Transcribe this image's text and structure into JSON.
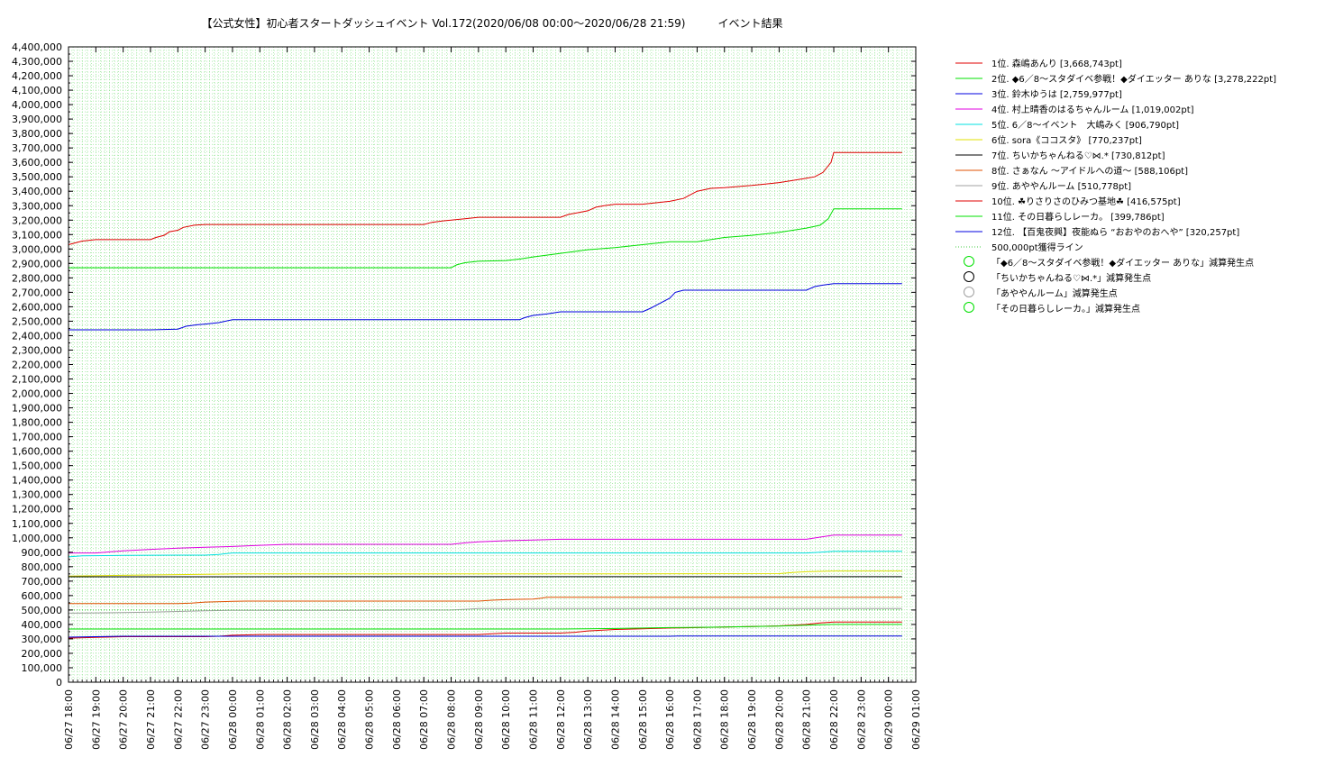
{
  "chart_data": {
    "type": "line",
    "title": "【公式女性】初心者スタートダッシュイベント Vol.172(2020/06/08 00:00〜2020/06/28 21:59)　　　イベント結果",
    "xlabel": "",
    "ylabel": "",
    "grid": true,
    "legend_position": "right",
    "ylim": [
      0,
      4400000
    ],
    "xlim": [
      "06/27 18:00",
      "06/29 01:00"
    ],
    "y_ticks": [
      "0",
      "100,000",
      "200,000",
      "300,000",
      "400,000",
      "500,000",
      "600,000",
      "700,000",
      "800,000",
      "900,000",
      "1,000,000",
      "1,100,000",
      "1,200,000",
      "1,300,000",
      "1,400,000",
      "1,500,000",
      "1,600,000",
      "1,700,000",
      "1,800,000",
      "1,900,000",
      "2,000,000",
      "2,100,000",
      "2,200,000",
      "2,300,000",
      "2,400,000",
      "2,500,000",
      "2,600,000",
      "2,700,000",
      "2,800,000",
      "2,900,000",
      "3,000,000",
      "3,100,000",
      "3,200,000",
      "3,300,000",
      "3,400,000",
      "3,500,000",
      "3,600,000",
      "3,700,000",
      "3,800,000",
      "3,900,000",
      "4,000,000",
      "4,100,000",
      "4,200,000",
      "4,300,000",
      "4,400,000"
    ],
    "x_ticks": [
      "06/27 18:00",
      "06/27 19:00",
      "06/27 20:00",
      "06/27 21:00",
      "06/27 22:00",
      "06/27 23:00",
      "06/28 00:00",
      "06/28 01:00",
      "06/28 02:00",
      "06/28 03:00",
      "06/28 04:00",
      "06/28 05:00",
      "06/28 06:00",
      "06/28 07:00",
      "06/28 08:00",
      "06/28 09:00",
      "06/28 10:00",
      "06/28 11:00",
      "06/28 12:00",
      "06/28 13:00",
      "06/28 14:00",
      "06/28 15:00",
      "06/28 16:00",
      "06/28 17:00",
      "06/28 18:00",
      "06/28 19:00",
      "06/28 20:00",
      "06/28 21:00",
      "06/28 22:00",
      "06/28 23:00",
      "06/29 00:00",
      "06/29 01:00"
    ],
    "series": [
      {
        "name": "1位. 森嶋あんり [3,668,743pt]",
        "color": "#e00000",
        "style": "solid",
        "x": [
          0,
          0.2,
          0.5,
          1,
          2,
          3,
          3.2,
          3.5,
          3.7,
          4,
          4.2,
          4.6,
          5,
          5.5,
          13,
          13.3,
          13.7,
          14,
          14.5,
          15,
          17,
          18,
          18.3,
          18.6,
          19,
          19.3,
          19.6,
          20,
          21,
          21.5,
          22,
          22.5,
          23,
          23.5,
          24,
          25,
          25.5,
          26,
          26.5,
          27,
          27.3,
          27.6,
          27.9,
          28,
          29,
          30,
          30.5
        ],
        "y": [
          3030000,
          3040000,
          3055000,
          3065000,
          3065000,
          3065000,
          3080000,
          3095000,
          3120000,
          3130000,
          3150000,
          3165000,
          3170000,
          3170000,
          3170000,
          3185000,
          3195000,
          3200000,
          3210000,
          3220000,
          3220000,
          3220000,
          3240000,
          3250000,
          3265000,
          3290000,
          3300000,
          3310000,
          3310000,
          3320000,
          3330000,
          3350000,
          3400000,
          3420000,
          3425000,
          3440000,
          3450000,
          3460000,
          3475000,
          3490000,
          3500000,
          3530000,
          3600000,
          3668743,
          3668743,
          3668743,
          3668743
        ]
      },
      {
        "name": "2位. ◆6／8〜スタダイベ参戦！◆ダイエッター ありな [3,278,222pt]",
        "color": "#00e000",
        "style": "solid",
        "x": [
          0,
          5,
          10,
          14,
          14.2,
          14.5,
          15,
          16,
          16.5,
          17,
          18,
          19,
          20,
          21,
          22,
          23,
          23.5,
          24,
          25,
          26,
          27,
          27.5,
          27.8,
          28,
          29,
          30,
          30.5
        ],
        "y": [
          2870000,
          2870000,
          2870000,
          2870000,
          2890000,
          2905000,
          2915000,
          2920000,
          2930000,
          2945000,
          2970000,
          2995000,
          3010000,
          3030000,
          3050000,
          3050000,
          3065000,
          3080000,
          3095000,
          3115000,
          3145000,
          3165000,
          3210000,
          3278222,
          3278222,
          3278222,
          3278222
        ]
      },
      {
        "name": "3位. 鈴木ゆうは [2,759,977pt]",
        "color": "#0000e0",
        "style": "solid",
        "x": [
          0,
          1,
          2,
          3,
          4,
          4.3,
          4.7,
          5,
          5.5,
          6,
          10,
          16.5,
          16.7,
          17,
          17.5,
          18,
          20,
          21,
          21.3,
          21.6,
          22,
          22.2,
          22.5,
          23,
          27,
          27.3,
          27.6,
          28,
          29,
          30,
          30.5
        ],
        "y": [
          2440000,
          2440000,
          2440000,
          2440000,
          2445000,
          2465000,
          2475000,
          2480000,
          2490000,
          2510000,
          2510000,
          2510000,
          2525000,
          2540000,
          2550000,
          2565000,
          2565000,
          2565000,
          2590000,
          2620000,
          2660000,
          2700000,
          2715000,
          2715000,
          2715000,
          2740000,
          2750000,
          2759977,
          2759977,
          2759977,
          2759977
        ]
      },
      {
        "name": "4位. 村上晴香のはるちゃんルーム [1,019,002pt]",
        "color": "#e000e0",
        "style": "solid",
        "x": [
          0,
          1,
          2,
          3,
          4,
          5,
          6,
          7,
          8,
          10,
          14,
          14.5,
          15,
          16,
          17,
          18,
          20,
          26,
          27,
          27.5,
          28,
          29,
          30,
          30.5
        ],
        "y": [
          895000,
          895000,
          910000,
          920000,
          928000,
          935000,
          940000,
          948000,
          955000,
          955000,
          955000,
          965000,
          972000,
          980000,
          985000,
          990000,
          990000,
          990000,
          990000,
          1005000,
          1019002,
          1019002,
          1019002,
          1019002
        ]
      },
      {
        "name": "5位. 6／8〜イベント　大嶋みく [906,790pt]",
        "color": "#00e0e0",
        "style": "solid",
        "x": [
          0,
          0.5,
          2,
          4,
          5,
          5.5,
          6,
          7,
          10,
          20,
          27,
          27.5,
          28,
          30.5
        ],
        "y": [
          868000,
          875000,
          878000,
          880000,
          880000,
          885000,
          895000,
          895000,
          895000,
          895000,
          895000,
          900000,
          906790,
          906790
        ]
      },
      {
        "name": "6位. sora《ココスタ》 [770,237pt]",
        "color": "#e0e000",
        "style": "solid",
        "x": [
          0,
          2,
          4,
          6,
          10,
          20,
          26,
          26.5,
          27,
          28,
          30.5
        ],
        "y": [
          735000,
          740000,
          745000,
          750000,
          750000,
          750000,
          752000,
          760000,
          765000,
          770237,
          770237
        ]
      },
      {
        "name": "7位. ちいかちゃんねる♡⋈.* [730,812pt]",
        "color": "#000000",
        "style": "solid",
        "x": [
          0,
          5,
          10,
          20,
          30.5
        ],
        "y": [
          730000,
          730400,
          730812,
          730812,
          730812
        ]
      },
      {
        "name": "8位. さぁなん 〜アイドルへの道〜 [588,106pt]",
        "color": "#e05000",
        "style": "solid",
        "x": [
          0,
          4,
          4.5,
          5,
          6,
          6.5,
          10,
          15,
          15.5,
          16,
          16.5,
          17,
          17.3,
          17.5,
          20,
          30.5
        ],
        "y": [
          545000,
          545000,
          548000,
          555000,
          560000,
          562000,
          562000,
          562000,
          568000,
          572000,
          574000,
          576000,
          582000,
          588106,
          588106,
          588106
        ]
      },
      {
        "name": "9位. あややんルーム [510,778pt]",
        "color": "#a0a0a0",
        "style": "solid",
        "x": [
          0,
          1,
          2,
          3,
          4,
          5,
          6,
          10,
          14,
          14.5,
          15,
          20,
          30.5
        ],
        "y": [
          478000,
          480000,
          482000,
          485000,
          490000,
          495000,
          498000,
          498000,
          500000,
          505000,
          510778,
          510778,
          510778
        ]
      },
      {
        "name": "10位. ☘りさりさのひみつ基地☘ [416,575pt]",
        "color": "#e00000",
        "style": "solid",
        "x": [
          0,
          1,
          2,
          5,
          5.5,
          6,
          7,
          10,
          15,
          15.5,
          16,
          18,
          18.5,
          19,
          20,
          21,
          22,
          23,
          24,
          25,
          26,
          26.5,
          27,
          27.5,
          28,
          30.5
        ],
        "y": [
          305000,
          310000,
          315000,
          315000,
          318000,
          325000,
          330000,
          330000,
          330000,
          335000,
          340000,
          340000,
          345000,
          355000,
          365000,
          370000,
          375000,
          378000,
          382000,
          385000,
          390000,
          395000,
          400000,
          410000,
          416575,
          416575
        ]
      },
      {
        "name": "11位. その日暮らしレーカ。 [399,786pt]",
        "color": "#00e000",
        "style": "solid",
        "x": [
          0,
          5,
          10,
          15,
          18,
          19,
          20,
          21,
          22,
          23,
          24,
          25,
          26,
          27,
          28,
          30.5
        ],
        "y": [
          368000,
          368000,
          368000,
          368000,
          368000,
          370000,
          372000,
          375000,
          378000,
          380000,
          382000,
          385000,
          388000,
          395000,
          399786,
          399786
        ]
      },
      {
        "name": "12位. 【百鬼夜興】夜能ぬら “おおやのおへや” [320,257pt]",
        "color": "#0000e0",
        "style": "solid",
        "x": [
          0,
          1,
          2,
          5,
          10,
          20,
          21,
          22,
          22.3,
          23,
          25,
          30.5
        ],
        "y": [
          312000,
          315000,
          318000,
          318000,
          318000,
          318000,
          318000,
          318000,
          320257,
          320257,
          320257,
          320257
        ]
      },
      {
        "name": "500,000pt獲得ライン",
        "color": "#44cc44",
        "style": "dotted",
        "x": [
          0,
          30.5
        ],
        "y": [
          500000,
          500000
        ]
      }
    ],
    "markers": [
      {
        "label": "「◆6／8〜スタダイベ参戦！◆ダイエッター ありな」減算発生点",
        "color": "#00e000"
      },
      {
        "label": "「ちいかちゃんねる♡⋈.*」減算発生点",
        "color": "#000000"
      },
      {
        "label": "「あややんルーム」減算発生点",
        "color": "#a0a0a0"
      },
      {
        "label": "「その日暮らしレーカ。」減算発生点",
        "color": "#00e000"
      }
    ]
  }
}
